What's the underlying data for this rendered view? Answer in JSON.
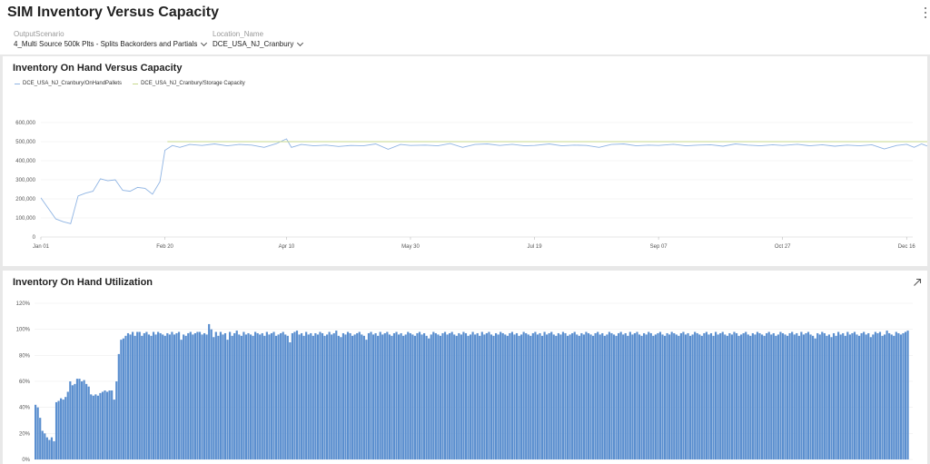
{
  "page": {
    "title": "SIM Inventory Versus Capacity",
    "menu_icon": "more-vertical-icon"
  },
  "filters": [
    {
      "label": "OutputScenario",
      "value": "4_Multi Source 500k Plts - Splits Backorders and Partials",
      "icon": "chevron-down-icon"
    },
    {
      "label": "Location_Name",
      "value": "DCE_USA_NJ_Cranbury",
      "icon": "chevron-down-icon"
    }
  ],
  "colors": {
    "onhand_line": "#8fb4e3",
    "capacity_line": "#c7d98e",
    "bars": "#5b8fcf",
    "gridline": "#eeeeee",
    "axis": "#cccccc"
  },
  "chart_data": [
    {
      "type": "line",
      "title": "Inventory On Hand Versus Capacity",
      "xlabel": "",
      "ylabel": "",
      "ylim": [
        0,
        600000
      ],
      "yticks": [
        0,
        100000,
        200000,
        300000,
        400000,
        500000,
        600000
      ],
      "ytick_labels": [
        "0",
        "100,000",
        "200,000",
        "300,000",
        "400,000",
        "500,000",
        "600,000"
      ],
      "xlim": [
        0,
        350
      ],
      "xtick_positions": [
        0,
        50,
        99,
        149,
        199,
        249,
        299,
        349
      ],
      "xtick_labels": [
        "Jan 01",
        "Feb 20",
        "Apr 10",
        "May 30",
        "Jul 19",
        "Sep 07",
        "Oct 27",
        "Dec 16"
      ],
      "grid": "horizontal",
      "legend": "top-left",
      "x_start_label": "Jan 01",
      "x_step_days": 1,
      "series": [
        {
          "name": "DCE_USA_NJ_Cranbury/OnHandPallets",
          "x": [
            0,
            3,
            6,
            9,
            12,
            15,
            18,
            21,
            24,
            27,
            30,
            33,
            36,
            39,
            42,
            45,
            48,
            50,
            53,
            56,
            60,
            65,
            70,
            75,
            80,
            85,
            90,
            95,
            99,
            101,
            105,
            110,
            115,
            120,
            125,
            130,
            135,
            140,
            145,
            149,
            155,
            160,
            165,
            170,
            175,
            180,
            185,
            190,
            195,
            199,
            205,
            210,
            215,
            220,
            225,
            230,
            235,
            240,
            245,
            249,
            255,
            260,
            265,
            270,
            275,
            280,
            285,
            290,
            295,
            299,
            305,
            310,
            315,
            320,
            325,
            330,
            335,
            340,
            345,
            349,
            352,
            355,
            358,
            361,
            364
          ],
          "values": [
            205000,
            150000,
            95000,
            80000,
            70000,
            215000,
            230000,
            240000,
            305000,
            295000,
            300000,
            245000,
            240000,
            260000,
            255000,
            225000,
            290000,
            455000,
            480000,
            470000,
            485000,
            480000,
            488000,
            478000,
            485000,
            482000,
            470000,
            490000,
            515000,
            470000,
            485000,
            478000,
            482000,
            475000,
            480000,
            478000,
            488000,
            460000,
            485000,
            480000,
            482000,
            478000,
            490000,
            470000,
            485000,
            488000,
            480000,
            486000,
            478000,
            480000,
            488000,
            478000,
            482000,
            480000,
            470000,
            485000,
            488000,
            478000,
            482000,
            480000,
            486000,
            478000,
            482000,
            484000,
            476000,
            488000,
            482000,
            478000,
            484000,
            480000,
            486000,
            478000,
            484000,
            476000,
            482000,
            478000,
            484000,
            462000,
            480000,
            486000,
            470000,
            488000,
            474000,
            490000,
            495000
          ]
        },
        {
          "name": "DCE_USA_NJ_Cranbury/Storage Capacity",
          "x": [
            51,
            364
          ],
          "values": [
            500000,
            500000
          ]
        }
      ]
    },
    {
      "type": "bar",
      "title": "Inventory On Hand Utilization",
      "xlabel": "",
      "ylabel": "",
      "ylim": [
        0,
        120
      ],
      "yticks": [
        0,
        20,
        40,
        60,
        80,
        100,
        120
      ],
      "ytick_labels": [
        "0%",
        "20%",
        "40%",
        "60%",
        "80%",
        "100%",
        "120%"
      ],
      "grid": "horizontal",
      "expand_icon": "expand-arrow-icon",
      "series": [
        {
          "name": "",
          "values": [
            42,
            40,
            32,
            22,
            20,
            17,
            15,
            17,
            14,
            44,
            45,
            47,
            46,
            48,
            52,
            60,
            57,
            58,
            62,
            62,
            60,
            61,
            58,
            56,
            50,
            49,
            50,
            49,
            51,
            52,
            53,
            52,
            53,
            53,
            46,
            60,
            81,
            92,
            93,
            95,
            97,
            96,
            98,
            95,
            98,
            98,
            95,
            97,
            98,
            96,
            95,
            98,
            96,
            98,
            97,
            96,
            95,
            97,
            96,
            98,
            96,
            97,
            98,
            92,
            96,
            95,
            97,
            98,
            96,
            97,
            98,
            98,
            96,
            97,
            96,
            104,
            100,
            94,
            98,
            95,
            98,
            96,
            97,
            92,
            98,
            95,
            97,
            99,
            96,
            95,
            98,
            96,
            97,
            96,
            95,
            98,
            97,
            96,
            97,
            95,
            98,
            96,
            97,
            98,
            95,
            96,
            97,
            98,
            96,
            95,
            90,
            97,
            98,
            99,
            96,
            97,
            95,
            98,
            96,
            97,
            95,
            97,
            96,
            98,
            97,
            95,
            96,
            98,
            96,
            97,
            99,
            95,
            94,
            97,
            96,
            98,
            97,
            95,
            96,
            97,
            98,
            96,
            95,
            92,
            97,
            98,
            96,
            97,
            95,
            98,
            96,
            97,
            98,
            96,
            95,
            97,
            98,
            96,
            97,
            95,
            96,
            98,
            97,
            96,
            95,
            97,
            98,
            96,
            97,
            95,
            93,
            96,
            98,
            97,
            96,
            95,
            97,
            98,
            96,
            97,
            98,
            96,
            95,
            97,
            96,
            98,
            97,
            95,
            96,
            98,
            96,
            97,
            95,
            98,
            96,
            97,
            98,
            96,
            95,
            97,
            96,
            98,
            97,
            96,
            95,
            97,
            98,
            96,
            97,
            95,
            96,
            98,
            97,
            96,
            95,
            97,
            98,
            96,
            97,
            95,
            98,
            96,
            97,
            98,
            96,
            95,
            97,
            96,
            98,
            97,
            95,
            96,
            97,
            98,
            96,
            95,
            97,
            96,
            98,
            97,
            96,
            95,
            97,
            98,
            96,
            97,
            95,
            96,
            98,
            97,
            96,
            95,
            97,
            98,
            96,
            97,
            95,
            98,
            96,
            97,
            98,
            96,
            95,
            97,
            96,
            98,
            97,
            95,
            96,
            97,
            98,
            96,
            95,
            97,
            96,
            98,
            97,
            96,
            95,
            97,
            98,
            96,
            97,
            95,
            96,
            98,
            97,
            96,
            95,
            97,
            98,
            96,
            97,
            95,
            98,
            96,
            97,
            98,
            96,
            95,
            97,
            96,
            98,
            97,
            95,
            96,
            97,
            98,
            96,
            95,
            97,
            96,
            98,
            97,
            96,
            95,
            97,
            98,
            96,
            97,
            95,
            96,
            98,
            97,
            96,
            95,
            97,
            98,
            96,
            97,
            95,
            98,
            96,
            97,
            98,
            96,
            95,
            93,
            97,
            96,
            98,
            97,
            95,
            96,
            94,
            97,
            95,
            98,
            96,
            97,
            95,
            98,
            96,
            97,
            98,
            96,
            95,
            97,
            98,
            96,
            97,
            94,
            96,
            98,
            97,
            98,
            95,
            96,
            99,
            97,
            96,
            95,
            98,
            97,
            96,
            97,
            98,
            99
          ]
        }
      ]
    }
  ]
}
